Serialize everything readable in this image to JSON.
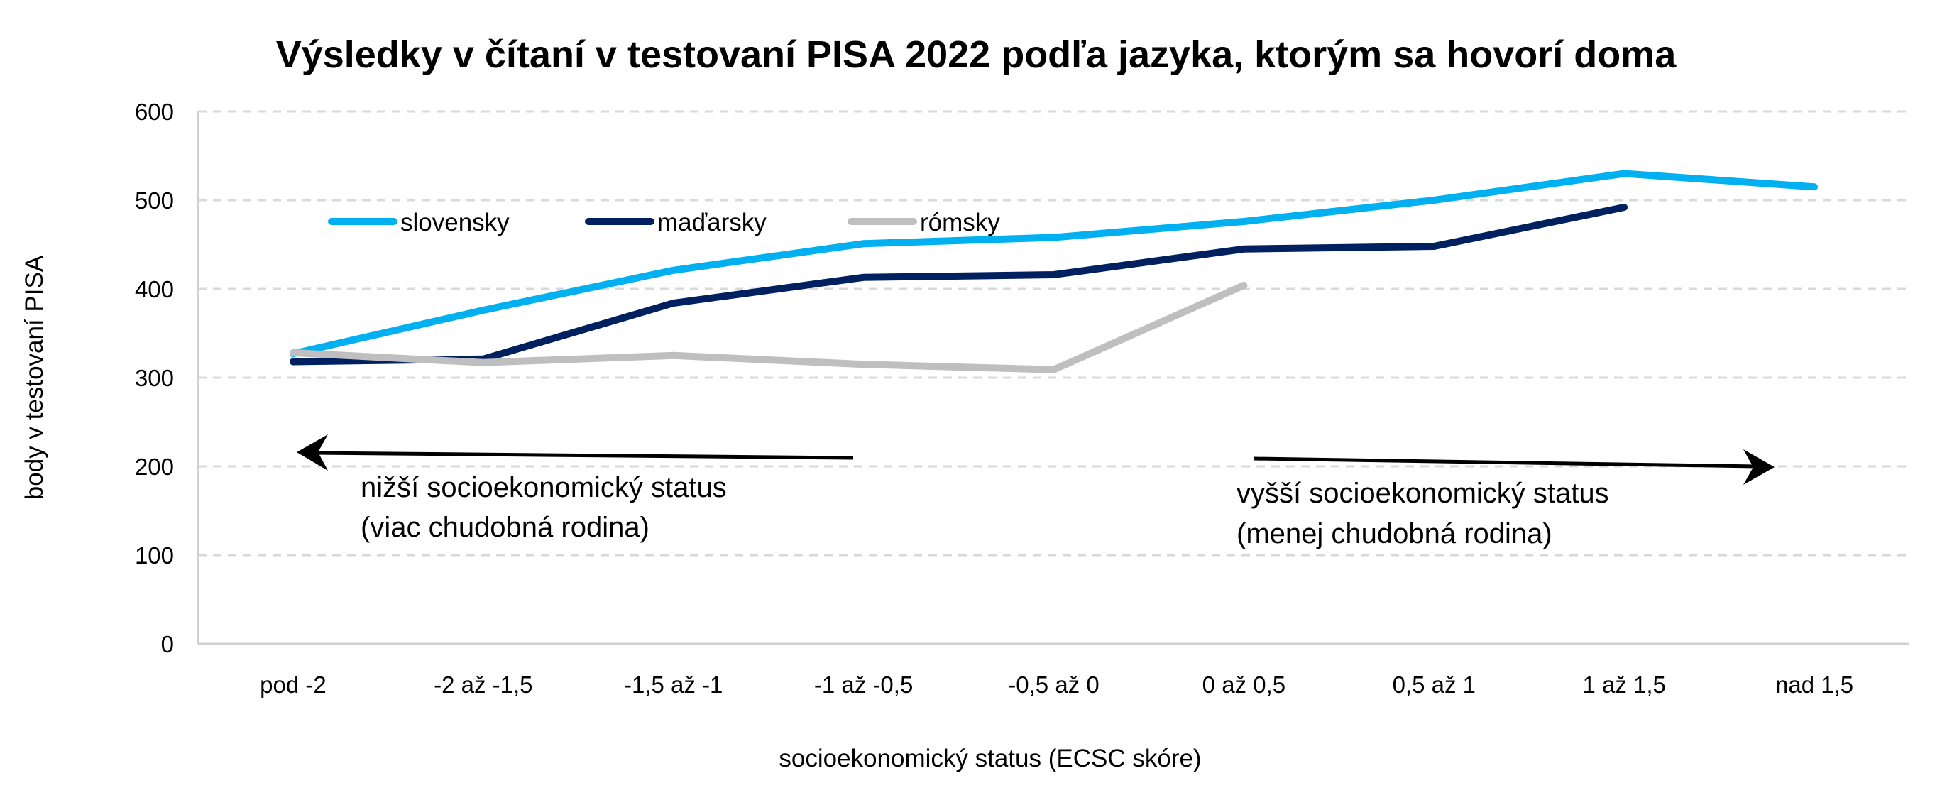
{
  "chart_data": {
    "type": "line",
    "title": "Výsledky v čítaní v testovaní PISA 2022 podľa jazyka, ktorým sa hovorí doma",
    "xlabel": "socioekonomický status (ECSC skóre)",
    "ylabel": "body v testovaní PISA",
    "categories": [
      "pod -2",
      "-2 až -1,5",
      "-1,5 až -1",
      "-1 až -0,5",
      "-0,5 až 0",
      "0 až 0,5",
      "0,5 až 1",
      "1 až 1,5",
      "nad 1,5"
    ],
    "ylim": [
      0,
      600
    ],
    "yticks": [
      "0",
      "100",
      "200",
      "300",
      "400",
      "500",
      "600"
    ],
    "grid": "horizontal dashed",
    "legend": "top-left inside",
    "series": [
      {
        "name": "slovensky",
        "color": "#00B0F0",
        "values": [
          327,
          376,
          421,
          451,
          458,
          476,
          500,
          530,
          515
        ]
      },
      {
        "name": "maďarsky",
        "color": "#002060",
        "values": [
          318,
          321,
          384,
          413,
          416,
          445,
          448,
          492,
          null
        ]
      },
      {
        "name": "rómsky",
        "color": "#BFBFBF",
        "values": [
          328,
          317,
          325,
          315,
          309,
          404,
          null,
          null,
          null
        ]
      }
    ],
    "annotations": [
      {
        "direction": "left",
        "lines": [
          "nižší socioekonomický status",
          "(viac chudobná rodina)"
        ]
      },
      {
        "direction": "right",
        "lines": [
          "vyšší socioekonomický status",
          "(menej chudobná rodina)"
        ]
      }
    ]
  }
}
